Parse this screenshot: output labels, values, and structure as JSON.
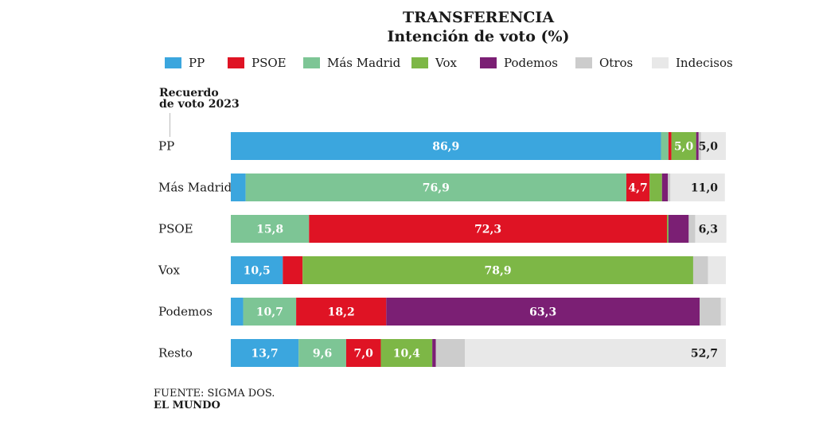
{
  "colors": {
    "PP": "#3ba6de",
    "PSOE": "#df1324",
    "Más Madrid": "#7dc595",
    "Vox": "#7db746",
    "Podemos": "#7b1f74",
    "Otros": "#cccccc",
    "Indecisos": "#e8e8e8"
  },
  "legend": [
    {
      "label": "PP",
      "color_key": "PP"
    },
    {
      "label": "PSOE",
      "color_key": "PSOE"
    },
    {
      "label": "Más Madrid",
      "color_key": "Más Madrid"
    },
    {
      "label": "Vox",
      "color_key": "Vox"
    },
    {
      "label": "Podemos",
      "color_key": "Podemos"
    },
    {
      "label": "Otros",
      "color_key": "Otros"
    },
    {
      "label": "Indecisos",
      "color_key": "Indecisos"
    }
  ],
  "row_axis_title": "Recuerdo de voto 2023",
  "footer": {
    "source": "FUENTE: SIGMA DOS.",
    "brand": "EL MUNDO"
  },
  "chart_data": {
    "type": "bar",
    "orientation": "horizontal",
    "stacked": true,
    "title": "TRANSFERENCIA",
    "subtitle": "Intención  de voto (%)",
    "xlim": [
      0,
      100
    ],
    "categories": [
      "PP",
      "Más Madrid",
      "PSOE",
      "Vox",
      "Podemos",
      "Resto"
    ],
    "series": [
      {
        "name": "PP",
        "values": [
          86.9,
          3.0,
          0,
          10.5,
          2.5,
          13.7
        ]
      },
      {
        "name": "Más Madrid",
        "values": [
          1.5,
          76.9,
          15.8,
          0,
          10.7,
          9.6
        ]
      },
      {
        "name": "PSOE",
        "values": [
          0.6,
          4.7,
          72.3,
          4.0,
          18.2,
          7.0
        ]
      },
      {
        "name": "Vox",
        "values": [
          5.0,
          2.5,
          0.3,
          78.9,
          0,
          10.4
        ]
      },
      {
        "name": "Podemos",
        "values": [
          0.5,
          1.2,
          4.1,
          0,
          63.3,
          0.7
        ]
      },
      {
        "name": "Otros",
        "values": [
          0.5,
          0.5,
          1.3,
          3.0,
          4.3,
          5.9
        ]
      },
      {
        "name": "Indecisos",
        "values": [
          5.0,
          11.0,
          6.3,
          3.6,
          1.0,
          52.7
        ]
      }
    ],
    "data_labels": [
      [
        "86,9",
        "",
        "",
        "5,0",
        "",
        "",
        "5,0"
      ],
      [
        "",
        "76,9",
        "4,7",
        "",
        "",
        "",
        "11,0"
      ],
      [
        "",
        "15,8",
        "72,3",
        "",
        "",
        "",
        "6,3"
      ],
      [
        "10,5",
        "",
        "",
        "78,9",
        "",
        "",
        ""
      ],
      [
        "",
        "10,7",
        "18,2",
        "",
        "63,3",
        "",
        ""
      ],
      [
        "13,7",
        "9,6",
        "7,0",
        "10,4",
        "",
        "",
        "52,7"
      ]
    ]
  }
}
